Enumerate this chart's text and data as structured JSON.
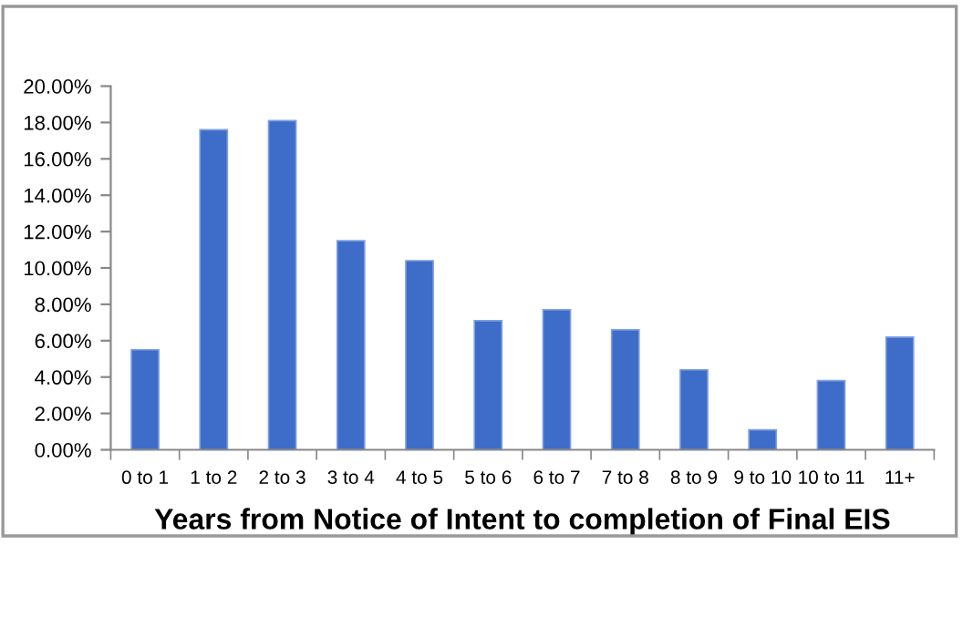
{
  "chart_data": {
    "type": "bar",
    "xlabel": "Years from Notice of Intent to completion of Final EIS",
    "categories": [
      "0 to 1",
      "1 to 2",
      "2 to 3",
      "3 to 4",
      "4 to 5",
      "5 to 6",
      "6 to 7",
      "7 to 8",
      "8 to 9",
      "9 to 10",
      "10 to 11",
      "11+"
    ],
    "values": [
      5.5,
      17.6,
      18.1,
      11.5,
      10.4,
      7.1,
      7.7,
      6.6,
      4.4,
      1.1,
      3.8,
      6.2
    ],
    "color": "#3d6cc9",
    "ylim": [
      0,
      20
    ],
    "yticks": [
      {
        "value": 0,
        "label": "0.00%"
      },
      {
        "value": 2,
        "label": "2.00%"
      },
      {
        "value": 4,
        "label": "4.00%"
      },
      {
        "value": 6,
        "label": "6.00%"
      },
      {
        "value": 8,
        "label": "8.00%"
      },
      {
        "value": 10,
        "label": "10.00%"
      },
      {
        "value": 12,
        "label": "12.00%"
      },
      {
        "value": 14,
        "label": "14.00%"
      },
      {
        "value": 16,
        "label": "16.00%"
      },
      {
        "value": 18,
        "label": "18.00%"
      },
      {
        "value": 20,
        "label": "20.00%"
      }
    ],
    "grid": false,
    "legend": false
  }
}
